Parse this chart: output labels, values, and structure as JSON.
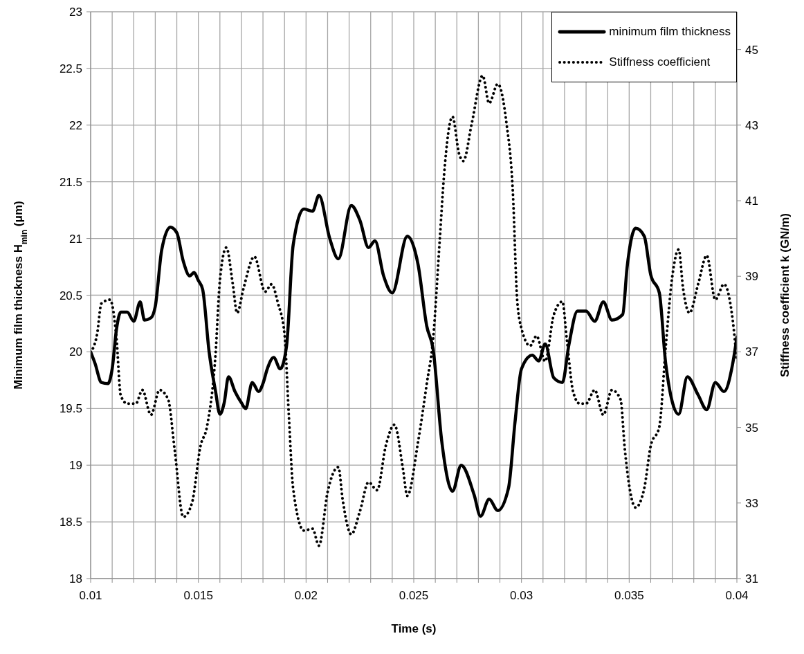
{
  "chart_data": {
    "type": "line",
    "xlabel": "Time (s)",
    "ylabel": "Minimum film thickness H$_{min}$ (μm)",
    "y2label": "Stiffness coefficient k (GN/m)",
    "xlim": [
      0.01,
      0.04
    ],
    "xticks": [
      0.01,
      {
        "value": 0.011,
        "label": null
      },
      {
        "value": 0.012,
        "label": null
      },
      {
        "value": 0.013,
        "label": null
      },
      {
        "value": 0.014,
        "label": null
      },
      0.015,
      {
        "value": 0.016,
        "label": null
      },
      {
        "value": 0.017,
        "label": null
      },
      {
        "value": 0.018,
        "label": null
      },
      {
        "value": 0.019,
        "label": null
      },
      0.02,
      {
        "value": 0.021,
        "label": null
      },
      {
        "value": 0.022,
        "label": null
      },
      {
        "value": 0.023,
        "label": null
      },
      {
        "value": 0.024,
        "label": null
      },
      0.025,
      {
        "value": 0.026,
        "label": null
      },
      {
        "value": 0.027,
        "label": null
      },
      {
        "value": 0.028,
        "label": null
      },
      {
        "value": 0.029,
        "label": null
      },
      0.03,
      {
        "value": 0.031,
        "label": null
      },
      {
        "value": 0.032,
        "label": null
      },
      {
        "value": 0.033,
        "label": null
      },
      {
        "value": 0.034,
        "label": null
      },
      0.035,
      {
        "value": 0.036,
        "label": null
      },
      {
        "value": 0.037,
        "label": null
      },
      {
        "value": 0.038,
        "label": null
      },
      {
        "value": 0.039,
        "label": null
      },
      0.04
    ],
    "ylim": [
      18,
      23
    ],
    "yticks": [
      18,
      18.5,
      19,
      19.5,
      20,
      20.5,
      21,
      21.5,
      22,
      22.5,
      23
    ],
    "y2lim": [
      31,
      46
    ],
    "y2ticks": [
      31,
      33,
      35,
      37,
      39,
      41,
      43,
      45
    ],
    "grid": true,
    "legend": "top right",
    "marker": "none",
    "series": [
      {
        "name": "minimum film thickness",
        "color": "#000000",
        "line_style": "solid",
        "x": [
          0.01,
          0.0102,
          0.0105,
          0.0108,
          0.011,
          0.0112,
          0.0114,
          0.0117,
          0.012,
          0.0123,
          0.0125,
          0.0128,
          0.013,
          0.0133,
          0.0137,
          0.014,
          0.0143,
          0.0146,
          0.0148,
          0.015,
          0.0152,
          0.0155,
          0.0158,
          0.016,
          0.0162,
          0.0164,
          0.0167,
          0.017,
          0.0172,
          0.0175,
          0.0178,
          0.018,
          0.0182,
          0.0185,
          0.0188,
          0.0191,
          0.0194,
          0.0199,
          0.0203,
          0.0206,
          0.0211,
          0.0215,
          0.0221,
          0.0225,
          0.0229,
          0.0232,
          0.0236,
          0.024,
          0.0247,
          0.0252,
          0.0256,
          0.0259,
          0.0263,
          0.0268,
          0.0272,
          0.0278,
          0.0281,
          0.0285,
          0.0289,
          0.0294,
          0.0297,
          0.03,
          0.0305,
          0.0308,
          0.0311,
          0.0315,
          0.0319,
          0.0322,
          0.0326,
          0.033,
          0.0334,
          0.0338,
          0.0342,
          0.0347,
          0.0349,
          0.0353,
          0.0357,
          0.036,
          0.0364,
          0.0367,
          0.0373,
          0.0377,
          0.0382,
          0.0386,
          0.039,
          0.0394,
          0.0398,
          0.04
        ],
        "values": [
          20.0,
          19.9,
          19.73,
          19.72,
          19.85,
          20.2,
          20.35,
          20.35,
          20.27,
          20.44,
          20.28,
          20.3,
          20.4,
          20.9,
          21.1,
          21.05,
          20.8,
          20.67,
          20.7,
          20.63,
          20.55,
          20.0,
          19.65,
          19.45,
          19.55,
          19.78,
          19.65,
          19.55,
          19.5,
          19.73,
          19.65,
          19.72,
          19.85,
          19.95,
          19.85,
          20.06,
          20.94,
          21.26,
          21.24,
          21.38,
          21.0,
          20.82,
          21.29,
          21.16,
          20.92,
          20.98,
          20.67,
          20.52,
          21.02,
          20.77,
          20.23,
          20.02,
          19.21,
          18.77,
          19.0,
          18.74,
          18.55,
          18.7,
          18.6,
          18.8,
          19.38,
          19.85,
          19.97,
          19.92,
          20.07,
          19.77,
          19.73,
          20.06,
          20.36,
          20.36,
          20.27,
          20.44,
          20.28,
          20.33,
          20.74,
          21.09,
          21.02,
          20.68,
          20.52,
          19.89,
          19.45,
          19.78,
          19.62,
          19.49,
          19.73,
          19.65,
          19.89,
          20.13
        ]
      },
      {
        "name": "Stiffness coefficient",
        "color": "#000000",
        "line_style": "dotted",
        "axis": "y2",
        "x": [
          0.01,
          0.0103,
          0.0105,
          0.0109,
          0.0112,
          0.0114,
          0.0117,
          0.0121,
          0.0124,
          0.0128,
          0.0132,
          0.0136,
          0.0139,
          0.0143,
          0.0147,
          0.0151,
          0.0154,
          0.0158,
          0.016,
          0.0163,
          0.0166,
          0.0168,
          0.0171,
          0.0176,
          0.0181,
          0.0184,
          0.0187,
          0.019,
          0.0192,
          0.0194,
          0.0199,
          0.0203,
          0.0206,
          0.021,
          0.0215,
          0.0217,
          0.0221,
          0.0225,
          0.0229,
          0.0233,
          0.0237,
          0.0241,
          0.0245,
          0.0247,
          0.0252,
          0.0256,
          0.0259,
          0.0262,
          0.0264,
          0.0268,
          0.0271,
          0.0273,
          0.0277,
          0.0282,
          0.0285,
          0.0289,
          0.0293,
          0.0296,
          0.0298,
          0.03,
          0.0304,
          0.0307,
          0.0311,
          0.0315,
          0.0319,
          0.0321,
          0.0324,
          0.0327,
          0.033,
          0.0334,
          0.0338,
          0.0342,
          0.0346,
          0.0348,
          0.0353,
          0.0357,
          0.036,
          0.0364,
          0.0367,
          0.037,
          0.0373,
          0.0375,
          0.0378,
          0.0382,
          0.0386,
          0.039,
          0.0394,
          0.0398,
          0.04
        ],
        "values": [
          36.99,
          37.47,
          38.28,
          38.38,
          37.36,
          35.84,
          35.63,
          35.63,
          35.99,
          35.33,
          35.99,
          35.74,
          34.41,
          32.63,
          32.99,
          34.51,
          35.02,
          36.96,
          38.89,
          39.76,
          38.79,
          38.03,
          38.69,
          39.52,
          38.59,
          38.79,
          38.28,
          37.47,
          35.33,
          33.39,
          32.27,
          32.32,
          31.87,
          33.29,
          33.95,
          33.09,
          32.17,
          32.78,
          33.55,
          33.34,
          34.51,
          35.07,
          33.9,
          33.19,
          34.62,
          36.14,
          37.36,
          39.91,
          41.64,
          43.22,
          42.25,
          42.05,
          43.07,
          44.31,
          43.58,
          44.09,
          43.07,
          41.23,
          38.38,
          37.62,
          37.16,
          37.42,
          36.75,
          37.98,
          38.33,
          37.36,
          35.94,
          35.63,
          35.63,
          35.99,
          35.33,
          35.99,
          35.74,
          34.41,
          32.88,
          33.39,
          34.51,
          35.02,
          37.16,
          38.99,
          39.71,
          38.69,
          38.03,
          38.79,
          39.55,
          38.38,
          38.79,
          37.87,
          36.75
        ]
      }
    ]
  }
}
